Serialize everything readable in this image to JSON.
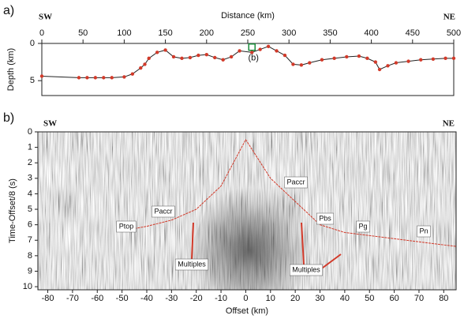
{
  "chart_data": [
    {
      "type": "line",
      "panel_label": "a)",
      "title": "Distance (km)",
      "left_label": "SW",
      "right_label": "NE",
      "ylabel": "Depth (km)",
      "xlim": [
        0,
        500
      ],
      "xticks": [
        0,
        50,
        100,
        150,
        200,
        250,
        300,
        350,
        400,
        450,
        500
      ],
      "ylim": [
        0,
        7
      ],
      "yticks": [
        0,
        5
      ],
      "y_inverted": true,
      "color": "#d23a2a",
      "line_color": "#222",
      "x": [
        0,
        45,
        55,
        65,
        75,
        85,
        100,
        110,
        120,
        125,
        130,
        140,
        150,
        160,
        170,
        180,
        190,
        200,
        210,
        220,
        230,
        240,
        255,
        265,
        275,
        285,
        295,
        305,
        315,
        325,
        340,
        355,
        370,
        385,
        395,
        405,
        410,
        420,
        430,
        445,
        460,
        475,
        490,
        500
      ],
      "values": [
        4.4,
        4.6,
        4.6,
        4.6,
        4.6,
        4.6,
        4.5,
        4.1,
        3.3,
        2.8,
        2.0,
        1.2,
        0.9,
        1.8,
        2.0,
        1.9,
        1.6,
        1.5,
        1.9,
        2.2,
        1.8,
        1.0,
        1.2,
        0.8,
        0.4,
        1.0,
        1.6,
        2.8,
        2.9,
        2.6,
        2.2,
        2.0,
        1.8,
        1.7,
        2.0,
        2.5,
        3.5,
        3.0,
        2.6,
        2.4,
        2.2,
        2.1,
        2.0,
        2.0
      ],
      "marker": {
        "x": 255,
        "y": 0.5,
        "label": "(b)",
        "color": "#1a8a3a"
      }
    },
    {
      "type": "seismic",
      "panel_label": "b)",
      "left_label": "SW",
      "right_label": "NE",
      "xlabel": "Offset (km)",
      "ylabel": "Time-Offset/8 (s)",
      "xlim": [
        -84,
        85
      ],
      "xticks": [
        -80,
        -70,
        -60,
        -50,
        -40,
        -30,
        -20,
        -10,
        0,
        10,
        20,
        30,
        40,
        50,
        60,
        70,
        80
      ],
      "ylim": [
        0,
        10.2
      ],
      "yticks": [
        0,
        1,
        2,
        3,
        4,
        5,
        6,
        7,
        8,
        9,
        10
      ],
      "y_inverted": true,
      "color": "#d23a2a",
      "x": [
        -50,
        -40,
        -30,
        -20,
        -10,
        0,
        10,
        20,
        30,
        40,
        50,
        60,
        70,
        85
      ],
      "values": [
        6.4,
        6.1,
        5.7,
        5.0,
        3.5,
        0.5,
        3.0,
        4.5,
        6.0,
        6.5,
        6.7,
        6.9,
        7.1,
        7.4
      ],
      "annotations": [
        "Ptop",
        "Paccr",
        "Paccr",
        "Pbs",
        "Pg",
        "Pn",
        "Multiples",
        "Multiples"
      ]
    }
  ]
}
